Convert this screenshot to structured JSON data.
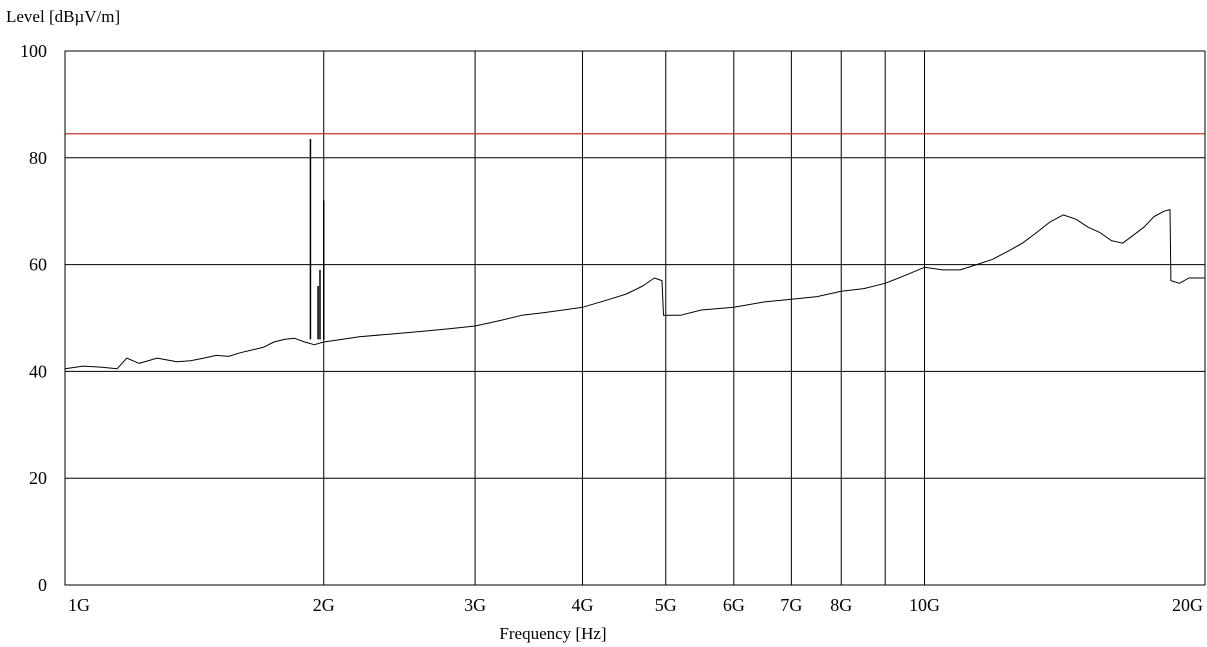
{
  "chart_data": {
    "type": "line",
    "ylabel": "Level [dBµV/m]",
    "xlabel": "Frequency [Hz]",
    "x_scale": "log",
    "xlim_ghz": [
      1,
      21.2
    ],
    "ylim": [
      0,
      100
    ],
    "y_ticks": [
      0,
      20,
      40,
      60,
      80,
      100
    ],
    "x_ticks": [
      {
        "value": 1,
        "label": "1G"
      },
      {
        "value": 2,
        "label": "2G"
      },
      {
        "value": 3,
        "label": "3G"
      },
      {
        "value": 4,
        "label": "4G"
      },
      {
        "value": 5,
        "label": "5G"
      },
      {
        "value": 6,
        "label": "6G"
      },
      {
        "value": 7,
        "label": "7G"
      },
      {
        "value": 8,
        "label": "8G"
      },
      {
        "value": 10,
        "label": "10G"
      },
      {
        "value": 20,
        "label": "20G"
      }
    ],
    "x_gridlines_ghz": [
      2,
      3,
      4,
      5,
      6,
      7,
      8,
      9,
      10
    ],
    "grid": true,
    "limit_line": {
      "value": 84.5,
      "color": "#c0392b"
    },
    "spikes": [
      {
        "x": 1.93,
        "y": 83.5
      },
      {
        "x": 1.97,
        "y": 56
      },
      {
        "x": 1.98,
        "y": 59
      },
      {
        "x": 2.0,
        "y": 72
      }
    ],
    "series": [
      {
        "color": "#000000",
        "points": [
          [
            1.0,
            40.5
          ],
          [
            1.05,
            41.0
          ],
          [
            1.1,
            40.8
          ],
          [
            1.15,
            40.5
          ],
          [
            1.18,
            42.5
          ],
          [
            1.22,
            41.5
          ],
          [
            1.28,
            42.5
          ],
          [
            1.35,
            41.8
          ],
          [
            1.4,
            42.0
          ],
          [
            1.45,
            42.5
          ],
          [
            1.5,
            43.0
          ],
          [
            1.55,
            42.8
          ],
          [
            1.6,
            43.5
          ],
          [
            1.65,
            44.0
          ],
          [
            1.7,
            44.5
          ],
          [
            1.75,
            45.5
          ],
          [
            1.8,
            46.0
          ],
          [
            1.85,
            46.2
          ],
          [
            1.9,
            45.5
          ],
          [
            1.95,
            45.0
          ],
          [
            2.0,
            45.5
          ],
          [
            2.1,
            46.0
          ],
          [
            2.2,
            46.5
          ],
          [
            2.4,
            47.0
          ],
          [
            2.6,
            47.5
          ],
          [
            2.8,
            48.0
          ],
          [
            3.0,
            48.5
          ],
          [
            3.2,
            49.5
          ],
          [
            3.4,
            50.5
          ],
          [
            3.6,
            51.0
          ],
          [
            3.8,
            51.5
          ],
          [
            4.0,
            52.0
          ],
          [
            4.3,
            53.5
          ],
          [
            4.5,
            54.5
          ],
          [
            4.7,
            56.0
          ],
          [
            4.85,
            57.5
          ],
          [
            4.95,
            57.0
          ],
          [
            4.97,
            50.5
          ],
          [
            5.2,
            50.5
          ],
          [
            5.5,
            51.5
          ],
          [
            6.0,
            52.0
          ],
          [
            6.5,
            53.0
          ],
          [
            7.0,
            53.5
          ],
          [
            7.5,
            54.0
          ],
          [
            8.0,
            55.0
          ],
          [
            8.5,
            55.5
          ],
          [
            9.0,
            56.5
          ],
          [
            9.5,
            58.0
          ],
          [
            10.0,
            59.5
          ],
          [
            10.5,
            59.0
          ],
          [
            11.0,
            59.0
          ],
          [
            11.5,
            60.0
          ],
          [
            12.0,
            61.0
          ],
          [
            12.5,
            62.5
          ],
          [
            13.0,
            64.0
          ],
          [
            13.5,
            66.0
          ],
          [
            14.0,
            68.0
          ],
          [
            14.5,
            69.3
          ],
          [
            15.0,
            68.5
          ],
          [
            15.5,
            67.0
          ],
          [
            16.0,
            66.0
          ],
          [
            16.5,
            64.5
          ],
          [
            17.0,
            64.0
          ],
          [
            17.5,
            65.5
          ],
          [
            18.0,
            67.0
          ],
          [
            18.5,
            69.0
          ],
          [
            19.0,
            70.0
          ],
          [
            19.3,
            70.3
          ],
          [
            19.35,
            57.0
          ],
          [
            19.8,
            56.5
          ],
          [
            20.3,
            57.5
          ],
          [
            20.8,
            57.5
          ],
          [
            21.2,
            57.5
          ]
        ]
      }
    ]
  }
}
